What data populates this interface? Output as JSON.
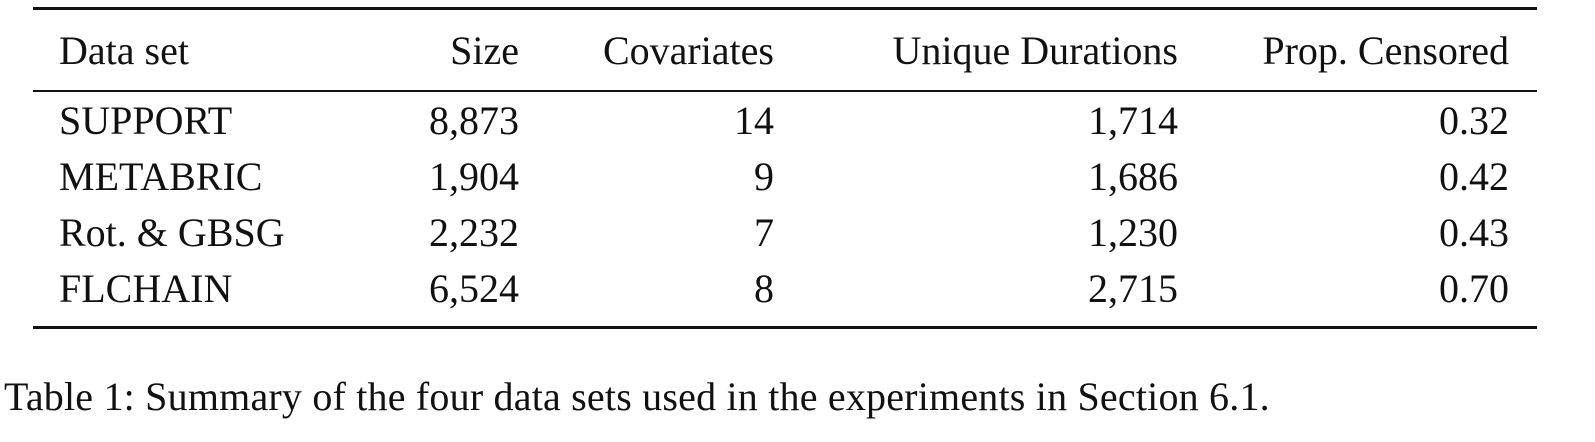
{
  "table": {
    "headers": [
      "Data set",
      "Size",
      "Covariates",
      "Unique Durations",
      "Prop. Censored"
    ],
    "rows": [
      [
        "SUPPORT",
        "8,873",
        "14",
        "1,714",
        "0.32"
      ],
      [
        "METABRIC",
        "1,904",
        "9",
        "1,686",
        "0.42"
      ],
      [
        "Rot. & GBSG",
        "2,232",
        "7",
        "1,230",
        "0.43"
      ],
      [
        "FLCHAIN",
        "6,524",
        "8",
        "2,715",
        "0.70"
      ]
    ]
  },
  "caption": "Table 1: Summary of the four data sets used in the experiments in Section 6.1."
}
